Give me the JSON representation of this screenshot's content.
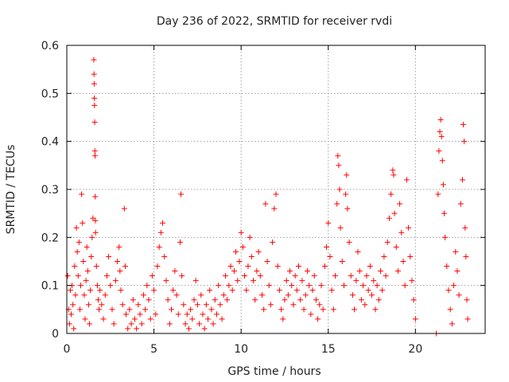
{
  "chart_data": {
    "type": "scatter",
    "title": "Day 236 of 2022, SRMTID for receiver rvdi",
    "xlabel": "GPS time / hours",
    "ylabel": "SRMTID / TECUs",
    "xlim": [
      0,
      24
    ],
    "ylim": [
      0,
      0.6
    ],
    "x_ticks": [
      0,
      5,
      10,
      15,
      20
    ],
    "x_tick_labels": [
      "0",
      "5",
      "10",
      "15",
      "20"
    ],
    "y_ticks": [
      0,
      0.1,
      0.2,
      0.3,
      0.4,
      0.5,
      0.6
    ],
    "y_tick_labels": [
      "0",
      "0.1",
      "0.2",
      "0.3",
      "0.4",
      "0.5",
      "0.6"
    ],
    "grid": true,
    "marker": "plus",
    "color": "#ff0000",
    "series": [
      {
        "name": "SRMTID",
        "points": [
          [
            0.05,
            0.12
          ],
          [
            0.1,
            0.05
          ],
          [
            0.15,
            0.02
          ],
          [
            0.2,
            0.09
          ],
          [
            0.25,
            0.04
          ],
          [
            0.3,
            0.1
          ],
          [
            0.35,
            0.06
          ],
          [
            0.4,
            0.01
          ],
          [
            0.45,
            0.14
          ],
          [
            0.5,
            0.08
          ],
          [
            0.55,
            0.22
          ],
          [
            0.6,
            0.17
          ],
          [
            0.65,
            0.12
          ],
          [
            0.7,
            0.19
          ],
          [
            0.75,
            0.05
          ],
          [
            0.8,
            0.1
          ],
          [
            0.85,
            0.29
          ],
          [
            0.9,
            0.23
          ],
          [
            0.95,
            0.15
          ],
          [
            1.0,
            0.08
          ],
          [
            1.05,
            0.03
          ],
          [
            1.1,
            0.11
          ],
          [
            1.15,
            0.18
          ],
          [
            1.2,
            0.13
          ],
          [
            1.25,
            0.06
          ],
          [
            1.3,
            0.02
          ],
          [
            1.35,
            0.09
          ],
          [
            1.4,
            0.16
          ],
          [
            1.45,
            0.2
          ],
          [
            1.5,
            0.24
          ],
          [
            1.55,
            0.57
          ],
          [
            1.56,
            0.54
          ],
          [
            1.57,
            0.52
          ],
          [
            1.58,
            0.49
          ],
          [
            1.59,
            0.475
          ],
          [
            1.6,
            0.44
          ],
          [
            1.61,
            0.38
          ],
          [
            1.62,
            0.37
          ],
          [
            1.63,
            0.285
          ],
          [
            1.64,
            0.235
          ],
          [
            1.65,
            0.21
          ],
          [
            1.7,
            0.14
          ],
          [
            1.75,
            0.1
          ],
          [
            1.8,
            0.07
          ],
          [
            1.85,
            0.05
          ],
          [
            1.9,
            0.09
          ],
          [
            2.0,
            0.06
          ],
          [
            2.1,
            0.03
          ],
          [
            2.2,
            0.08
          ],
          [
            2.3,
            0.12
          ],
          [
            2.4,
            0.16
          ],
          [
            2.5,
            0.1
          ],
          [
            2.6,
            0.05
          ],
          [
            2.7,
            0.02
          ],
          [
            2.8,
            0.11
          ],
          [
            2.9,
            0.15
          ],
          [
            3.0,
            0.18
          ],
          [
            3.05,
            0.13
          ],
          [
            3.1,
            0.09
          ],
          [
            3.2,
            0.06
          ],
          [
            3.3,
            0.26
          ],
          [
            3.35,
            0.14
          ],
          [
            3.4,
            0.04
          ],
          [
            3.5,
            0.01
          ],
          [
            3.6,
            0.05
          ],
          [
            3.7,
            0.02
          ],
          [
            3.8,
            0.07
          ],
          [
            3.9,
            0.03
          ],
          [
            4.0,
            0.01
          ],
          [
            4.1,
            0.06
          ],
          [
            4.2,
            0.04
          ],
          [
            4.3,
            0.02
          ],
          [
            4.4,
            0.08
          ],
          [
            4.5,
            0.05
          ],
          [
            4.6,
            0.1
          ],
          [
            4.7,
            0.07
          ],
          [
            4.8,
            0.03
          ],
          [
            4.9,
            0.12
          ],
          [
            5.0,
            0.09
          ],
          [
            5.1,
            0.04
          ],
          [
            5.2,
            0.14
          ],
          [
            5.3,
            0.18
          ],
          [
            5.4,
            0.21
          ],
          [
            5.5,
            0.23
          ],
          [
            5.6,
            0.16
          ],
          [
            5.7,
            0.11
          ],
          [
            5.8,
            0.07
          ],
          [
            5.9,
            0.02
          ],
          [
            6.0,
            0.05
          ],
          [
            6.1,
            0.09
          ],
          [
            6.2,
            0.13
          ],
          [
            6.3,
            0.08
          ],
          [
            6.4,
            0.04
          ],
          [
            6.5,
            0.19
          ],
          [
            6.55,
            0.29
          ],
          [
            6.6,
            0.12
          ],
          [
            6.7,
            0.06
          ],
          [
            6.8,
            0.02
          ],
          [
            6.9,
            0.04
          ],
          [
            7.0,
            0.01
          ],
          [
            7.1,
            0.05
          ],
          [
            7.2,
            0.03
          ],
          [
            7.3,
            0.07
          ],
          [
            7.4,
            0.11
          ],
          [
            7.5,
            0.06
          ],
          [
            7.6,
            0.02
          ],
          [
            7.7,
            0.08
          ],
          [
            7.8,
            0.04
          ],
          [
            7.9,
            0.01
          ],
          [
            8.0,
            0.06
          ],
          [
            8.1,
            0.03
          ],
          [
            8.2,
            0.09
          ],
          [
            8.3,
            0.05
          ],
          [
            8.4,
            0.02
          ],
          [
            8.5,
            0.07
          ],
          [
            8.6,
            0.04
          ],
          [
            8.7,
            0.1
          ],
          [
            8.8,
            0.06
          ],
          [
            8.9,
            0.03
          ],
          [
            9.0,
            0.08
          ],
          [
            9.1,
            0.12
          ],
          [
            9.2,
            0.07
          ],
          [
            9.3,
            0.1
          ],
          [
            9.4,
            0.14
          ],
          [
            9.5,
            0.09
          ],
          [
            9.6,
            0.13
          ],
          [
            9.7,
            0.17
          ],
          [
            9.8,
            0.11
          ],
          [
            9.9,
            0.15
          ],
          [
            10.0,
            0.21
          ],
          [
            10.1,
            0.18
          ],
          [
            10.2,
            0.12
          ],
          [
            10.3,
            0.09
          ],
          [
            10.4,
            0.14
          ],
          [
            10.5,
            0.2
          ],
          [
            10.6,
            0.16
          ],
          [
            10.7,
            0.11
          ],
          [
            10.8,
            0.07
          ],
          [
            10.9,
            0.13
          ],
          [
            11.0,
            0.17
          ],
          [
            11.1,
            0.12
          ],
          [
            11.2,
            0.08
          ],
          [
            11.3,
            0.05
          ],
          [
            11.4,
            0.27
          ],
          [
            11.5,
            0.15
          ],
          [
            11.6,
            0.1
          ],
          [
            11.7,
            0.06
          ],
          [
            11.8,
            0.19
          ],
          [
            11.9,
            0.26
          ],
          [
            12.0,
            0.29
          ],
          [
            12.1,
            0.14
          ],
          [
            12.2,
            0.09
          ],
          [
            12.3,
            0.05
          ],
          [
            12.4,
            0.03
          ],
          [
            12.5,
            0.07
          ],
          [
            12.6,
            0.11
          ],
          [
            12.7,
            0.08
          ],
          [
            12.8,
            0.13
          ],
          [
            12.9,
            0.1
          ],
          [
            13.0,
            0.06
          ],
          [
            13.1,
            0.12
          ],
          [
            13.2,
            0.09
          ],
          [
            13.3,
            0.14
          ],
          [
            13.4,
            0.07
          ],
          [
            13.5,
            0.11
          ],
          [
            13.6,
            0.05
          ],
          [
            13.7,
            0.08
          ],
          [
            13.8,
            0.13
          ],
          [
            13.9,
            0.1
          ],
          [
            14.0,
            0.04
          ],
          [
            14.1,
            0.09
          ],
          [
            14.2,
            0.12
          ],
          [
            14.3,
            0.07
          ],
          [
            14.4,
            0.03
          ],
          [
            14.5,
            0.06
          ],
          [
            14.6,
            0.1
          ],
          [
            14.7,
            0.05
          ],
          [
            14.8,
            0.14
          ],
          [
            14.9,
            0.18
          ],
          [
            15.0,
            0.23
          ],
          [
            15.1,
            0.16
          ],
          [
            15.2,
            0.09
          ],
          [
            15.3,
            0.05
          ],
          [
            15.4,
            0.12
          ],
          [
            15.5,
            0.27
          ],
          [
            15.55,
            0.37
          ],
          [
            15.6,
            0.35
          ],
          [
            15.65,
            0.3
          ],
          [
            15.7,
            0.22
          ],
          [
            15.8,
            0.15
          ],
          [
            15.9,
            0.1
          ],
          [
            16.0,
            0.29
          ],
          [
            16.05,
            0.33
          ],
          [
            16.1,
            0.26
          ],
          [
            16.2,
            0.19
          ],
          [
            16.3,
            0.12
          ],
          [
            16.4,
            0.08
          ],
          [
            16.5,
            0.05
          ],
          [
            16.6,
            0.11
          ],
          [
            16.7,
            0.17
          ],
          [
            16.8,
            0.13
          ],
          [
            16.9,
            0.07
          ],
          [
            17.0,
            0.1
          ],
          [
            17.1,
            0.06
          ],
          [
            17.2,
            0.12
          ],
          [
            17.3,
            0.09
          ],
          [
            17.4,
            0.14
          ],
          [
            17.5,
            0.08
          ],
          [
            17.6,
            0.11
          ],
          [
            17.7,
            0.05
          ],
          [
            17.8,
            0.1
          ],
          [
            17.9,
            0.07
          ],
          [
            18.0,
            0.13
          ],
          [
            18.1,
            0.09
          ],
          [
            18.2,
            0.16
          ],
          [
            18.3,
            0.12
          ],
          [
            18.4,
            0.19
          ],
          [
            18.5,
            0.24
          ],
          [
            18.6,
            0.29
          ],
          [
            18.7,
            0.34
          ],
          [
            18.75,
            0.33
          ],
          [
            18.8,
            0.25
          ],
          [
            18.9,
            0.18
          ],
          [
            19.0,
            0.13
          ],
          [
            19.1,
            0.27
          ],
          [
            19.2,
            0.21
          ],
          [
            19.3,
            0.15
          ],
          [
            19.4,
            0.1
          ],
          [
            19.5,
            0.32
          ],
          [
            19.6,
            0.22
          ],
          [
            19.7,
            0.16
          ],
          [
            19.8,
            0.11
          ],
          [
            19.9,
            0.07
          ],
          [
            20.0,
            0.03
          ],
          [
            21.2,
            0.0
          ],
          [
            21.3,
            0.29
          ],
          [
            21.35,
            0.38
          ],
          [
            21.4,
            0.42
          ],
          [
            21.45,
            0.445
          ],
          [
            21.5,
            0.41
          ],
          [
            21.55,
            0.36
          ],
          [
            21.6,
            0.31
          ],
          [
            21.65,
            0.25
          ],
          [
            21.7,
            0.2
          ],
          [
            21.8,
            0.14
          ],
          [
            21.9,
            0.09
          ],
          [
            22.0,
            0.05
          ],
          [
            22.1,
            0.02
          ],
          [
            22.2,
            0.1
          ],
          [
            22.3,
            0.17
          ],
          [
            22.4,
            0.13
          ],
          [
            22.5,
            0.08
          ],
          [
            22.6,
            0.27
          ],
          [
            22.7,
            0.32
          ],
          [
            22.75,
            0.435
          ],
          [
            22.8,
            0.4
          ],
          [
            22.85,
            0.22
          ],
          [
            22.9,
            0.16
          ],
          [
            22.95,
            0.07
          ],
          [
            23.0,
            0.03
          ]
        ]
      }
    ]
  }
}
